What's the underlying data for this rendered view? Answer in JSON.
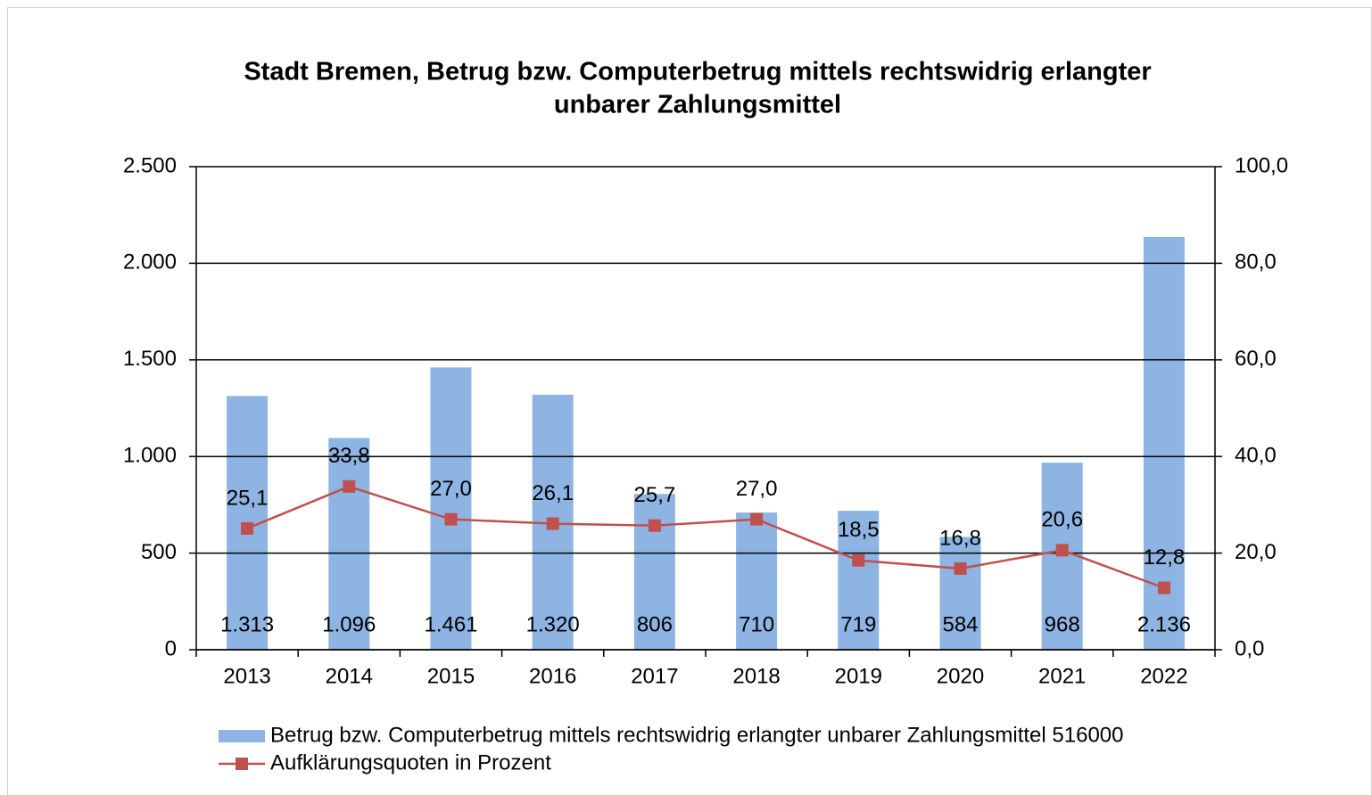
{
  "chart_data": {
    "type": "bar",
    "title": [
      "Stadt Bremen, Betrug bzw. Computerbetrug mittels rechtswidrig erlangter",
      "unbarer Zahlungsmittel"
    ],
    "categories": [
      "2013",
      "2014",
      "2015",
      "2016",
      "2017",
      "2018",
      "2019",
      "2020",
      "2021",
      "2022"
    ],
    "series": [
      {
        "name": "Betrug bzw. Computerbetrug mittels rechtswidrig erlangter unbarer Zahlungsmittel 516000",
        "type": "bar",
        "color": "#8db4e2",
        "values": [
          1313,
          1096,
          1461,
          1320,
          806,
          710,
          719,
          584,
          968,
          2136
        ],
        "value_labels": [
          "1.313",
          "1.096",
          "1.461",
          "1.320",
          "806",
          "710",
          "719",
          "584",
          "968",
          "2.136"
        ]
      },
      {
        "name": "Aufklärungsquoten in Prozent",
        "type": "line",
        "axis": "y2",
        "color": "#c0504d",
        "values": [
          25.1,
          33.8,
          27.0,
          26.1,
          25.7,
          27.0,
          18.5,
          16.8,
          20.6,
          12.8
        ],
        "value_labels": [
          "25,1",
          "33,8",
          "27,0",
          "26,1",
          "25,7",
          "27,0",
          "18,5",
          "16,8",
          "20,6",
          "12,8"
        ]
      }
    ],
    "ylim": [
      0,
      2500
    ],
    "yticks": [
      0,
      500,
      {
        "value": 1000,
        "label": "1.000"
      },
      {
        "value": 1500,
        "label": "1.500"
      },
      {
        "value": 2000,
        "label": "2.000"
      },
      {
        "value": 2500,
        "label": "2.500"
      }
    ],
    "y2lim": [
      0,
      100
    ],
    "y2ticks": [
      {
        "value": 0,
        "label": "0,0"
      },
      {
        "value": 20,
        "label": "20,0"
      },
      {
        "value": 40,
        "label": "40,0"
      },
      {
        "value": 60,
        "label": "60,0"
      },
      {
        "value": 80,
        "label": "80,0"
      },
      {
        "value": 100,
        "label": "100,0"
      }
    ],
    "grid": true,
    "legend": "bottom"
  }
}
